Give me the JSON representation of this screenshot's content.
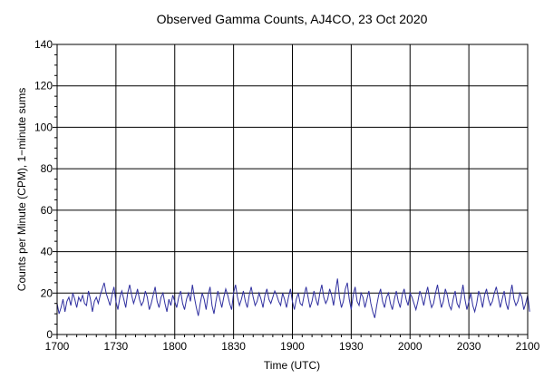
{
  "chart_data": {
    "type": "line",
    "title": "Observed Gamma Counts, AJ4CO, 23 Oct 2020",
    "xlabel": "Time (UTC)",
    "ylabel": "Counts per Minute (CPM), 1−minute sums",
    "x_ticks": [
      "1700",
      "1730",
      "1800",
      "1830",
      "1900",
      "1930",
      "2000",
      "2030",
      "2100"
    ],
    "y_ticks": [
      "0",
      "20",
      "40",
      "60",
      "80",
      "100",
      "120",
      "140"
    ],
    "xlim_minutes": [
      0,
      240
    ],
    "ylim": [
      0,
      140
    ],
    "grid": true,
    "series": [
      {
        "color": "#3030a0",
        "x_start": "1700",
        "interval_minutes": 1,
        "values": [
          15,
          10,
          13,
          17,
          11,
          16,
          18,
          14,
          20,
          17,
          13,
          18,
          16,
          19,
          15,
          14,
          21,
          17,
          11,
          16,
          18,
          15,
          19,
          22,
          25,
          20,
          17,
          14,
          19,
          23,
          16,
          12,
          18,
          21,
          17,
          13,
          20,
          24,
          19,
          15,
          18,
          22,
          17,
          14,
          16,
          21,
          18,
          12,
          15,
          19,
          23,
          16,
          13,
          18,
          20,
          15,
          11,
          17,
          14,
          19,
          16,
          13,
          18,
          21,
          15,
          12,
          17,
          20,
          16,
          24,
          18,
          13,
          9,
          15,
          20,
          17,
          12,
          19,
          23,
          14,
          10,
          16,
          21,
          17,
          13,
          18,
          22,
          19,
          15,
          12,
          20,
          24,
          18,
          14,
          17,
          21,
          16,
          13,
          19,
          23,
          18,
          14,
          16,
          20,
          17,
          13,
          19,
          22,
          17,
          15,
          18,
          21,
          19,
          16,
          14,
          20,
          17,
          13,
          18,
          22,
          16,
          12,
          17,
          20,
          15,
          14,
          19,
          23,
          18,
          13,
          16,
          21,
          17,
          14,
          20,
          24,
          18,
          15,
          17,
          22,
          19,
          14,
          21,
          27,
          18,
          13,
          16,
          22,
          25,
          17,
          12,
          19,
          23,
          16,
          14,
          20,
          18,
          13,
          17,
          21,
          15,
          11,
          8,
          14,
          19,
          22,
          16,
          13,
          18,
          20,
          15,
          12,
          17,
          21,
          16,
          13,
          19,
          22,
          17,
          14,
          20,
          18,
          15,
          12,
          16,
          21,
          18,
          14,
          19,
          23,
          17,
          13,
          15,
          20,
          24,
          18,
          13,
          16,
          22,
          19,
          14,
          12,
          17,
          21,
          15,
          13,
          18,
          24,
          17,
          12,
          16,
          20,
          14,
          11,
          15,
          21,
          18,
          13,
          19,
          22,
          17,
          14,
          16,
          20,
          23,
          18,
          13,
          17,
          21,
          15,
          12,
          19,
          24,
          17,
          14,
          16,
          20,
          18,
          12,
          15,
          19,
          11
        ]
      }
    ]
  }
}
